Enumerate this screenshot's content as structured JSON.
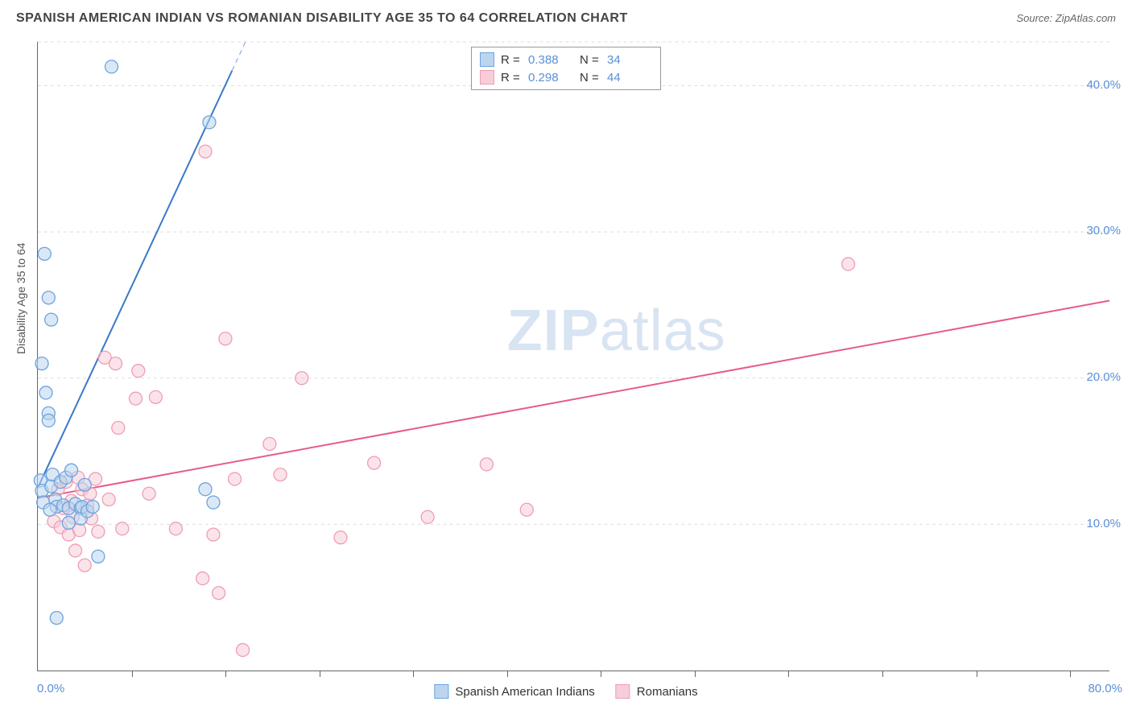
{
  "title": "SPANISH AMERICAN INDIAN VS ROMANIAN DISABILITY AGE 35 TO 64 CORRELATION CHART",
  "source": "Source: ZipAtlas.com",
  "ylabel": "Disability Age 35 to 64",
  "watermark": "ZIPatlas",
  "chart": {
    "type": "scatter-correlation",
    "xlim": [
      0,
      80
    ],
    "ylim": [
      0,
      43
    ],
    "x_min_label": "0.0%",
    "x_max_label": "80.0%",
    "y_ticks": [
      10,
      20,
      30,
      40
    ],
    "y_tick_labels": [
      "10.0%",
      "20.0%",
      "30.0%",
      "40.0%"
    ],
    "x_minor_ticks": [
      7,
      14,
      21,
      28,
      35,
      42,
      49,
      56,
      63,
      70,
      77
    ],
    "grid_color": "#dddddd",
    "axis_value_color": "#5b8fd6",
    "marker_radius": 8,
    "marker_stroke_width": 1.3,
    "line_width": 2,
    "background_color": "#ffffff"
  },
  "series": {
    "a": {
      "label": "Spanish American Indians",
      "color_fill": "#bcd5ef",
      "color_stroke": "#6ea3dd",
      "line_color": "#3a78c9",
      "R": "0.388",
      "N": "34",
      "trend": {
        "x1": 0,
        "y1": 12.5,
        "x2": 15.5,
        "y2": 43,
        "dashed_after_x": 14.5
      },
      "points": [
        [
          0.2,
          13
        ],
        [
          0.3,
          12.3
        ],
        [
          0.3,
          21
        ],
        [
          0.4,
          11.5
        ],
        [
          0.5,
          28.5
        ],
        [
          0.6,
          19
        ],
        [
          0.8,
          25.5
        ],
        [
          0.8,
          17.6
        ],
        [
          0.8,
          17.1
        ],
        [
          1.0,
          24
        ],
        [
          1.0,
          12.6
        ],
        [
          1.1,
          13.4
        ],
        [
          1.3,
          11.7
        ],
        [
          1.4,
          11.2
        ],
        [
          1.4,
          3.6
        ],
        [
          1.7,
          12.9
        ],
        [
          1.9,
          11.3
        ],
        [
          2.1,
          13.2
        ],
        [
          2.3,
          11.1
        ],
        [
          2.3,
          10.1
        ],
        [
          2.5,
          13.7
        ],
        [
          2.8,
          11.4
        ],
        [
          3.2,
          11.1
        ],
        [
          3.2,
          10.4
        ],
        [
          3.3,
          11.2
        ],
        [
          3.5,
          12.7
        ],
        [
          3.7,
          10.9
        ],
        [
          4.1,
          11.2
        ],
        [
          4.5,
          7.8
        ],
        [
          5.5,
          41.3
        ],
        [
          12.8,
          37.5
        ],
        [
          12.5,
          12.4
        ],
        [
          13.1,
          11.5
        ],
        [
          0.9,
          11.0
        ]
      ]
    },
    "b": {
      "label": "Romanians",
      "color_fill": "#f6cdd8",
      "color_stroke": "#ef9db4",
      "line_color": "#e75b8a",
      "R": "0.298",
      "N": "44",
      "trend": {
        "x1": 0,
        "y1": 11.8,
        "x2": 80,
        "y2": 25.3
      },
      "points": [
        [
          1.2,
          10.2
        ],
        [
          1.5,
          12.4
        ],
        [
          1.7,
          9.8
        ],
        [
          1.9,
          11.1
        ],
        [
          2.1,
          12.9
        ],
        [
          2.3,
          9.3
        ],
        [
          2.5,
          11.6
        ],
        [
          2.6,
          10.5
        ],
        [
          2.8,
          8.2
        ],
        [
          3.0,
          13.2
        ],
        [
          3.1,
          9.6
        ],
        [
          3.3,
          12.4
        ],
        [
          3.5,
          7.2
        ],
        [
          3.7,
          11.3
        ],
        [
          4.0,
          10.4
        ],
        [
          4.3,
          13.1
        ],
        [
          4.5,
          9.5
        ],
        [
          5.0,
          21.4
        ],
        [
          5.3,
          11.7
        ],
        [
          5.8,
          21
        ],
        [
          6.0,
          16.6
        ],
        [
          6.3,
          9.7
        ],
        [
          7.3,
          18.6
        ],
        [
          7.5,
          20.5
        ],
        [
          8.3,
          12.1
        ],
        [
          8.8,
          18.7
        ],
        [
          10.3,
          9.7
        ],
        [
          12.3,
          6.3
        ],
        [
          12.5,
          35.5
        ],
        [
          13.1,
          9.3
        ],
        [
          13.5,
          5.3
        ],
        [
          14.0,
          22.7
        ],
        [
          14.7,
          13.1
        ],
        [
          15.3,
          1.4
        ],
        [
          17.3,
          15.5
        ],
        [
          18.1,
          13.4
        ],
        [
          19.7,
          20
        ],
        [
          22.6,
          9.1
        ],
        [
          25.1,
          14.2
        ],
        [
          29.1,
          10.5
        ],
        [
          33.5,
          14.1
        ],
        [
          36.5,
          11.0
        ],
        [
          60.5,
          27.8
        ],
        [
          3.9,
          12.1
        ]
      ]
    }
  },
  "legend_top": {
    "R_label": "R =",
    "N_label": "N ="
  }
}
